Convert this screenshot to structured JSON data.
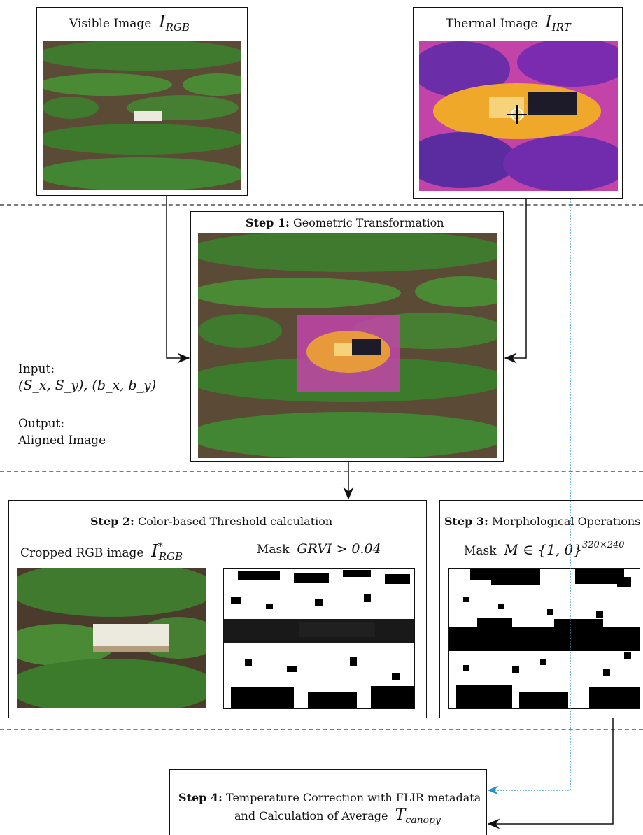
{
  "visible_box": {
    "title": "Visible Image",
    "symbol": "I",
    "subscript": "RGB"
  },
  "thermal_box": {
    "title": "Thermal Image",
    "symbol": "I",
    "subscript": "IRT"
  },
  "step1": {
    "bold": "Step 1:",
    "title": "Geometric Transformation"
  },
  "io": {
    "input_label": "Input:",
    "input_params": "(S_x, S_y), (b_x, b_y)",
    "output_label": "Output:",
    "output_value": "Aligned Image"
  },
  "step2": {
    "bold": "Step 2:",
    "title": "Color-based Threshold calculation",
    "cropped_label": "Cropped RGB image",
    "cropped_symbol": "I",
    "cropped_sup": "*",
    "cropped_sub": "RGB",
    "mask_label": "Mask",
    "mask_expr": "GRVI > 0.04"
  },
  "step3": {
    "bold": "Step 3:",
    "title": "Morphological Operations",
    "mask_label": "Mask",
    "mask_expr": "M ∈ {1, 0}",
    "mask_sup": "320×240"
  },
  "step4": {
    "bold": "Step 4:",
    "line1": "Temperature Correction with FLIR metadata",
    "line2": "and Calculation of Average",
    "symbol": "T",
    "subscript": "canopy"
  },
  "colors": {
    "arrow": "#111111",
    "dotted_arrow": "#2a8fc4",
    "separator": "#7a7a7a"
  }
}
